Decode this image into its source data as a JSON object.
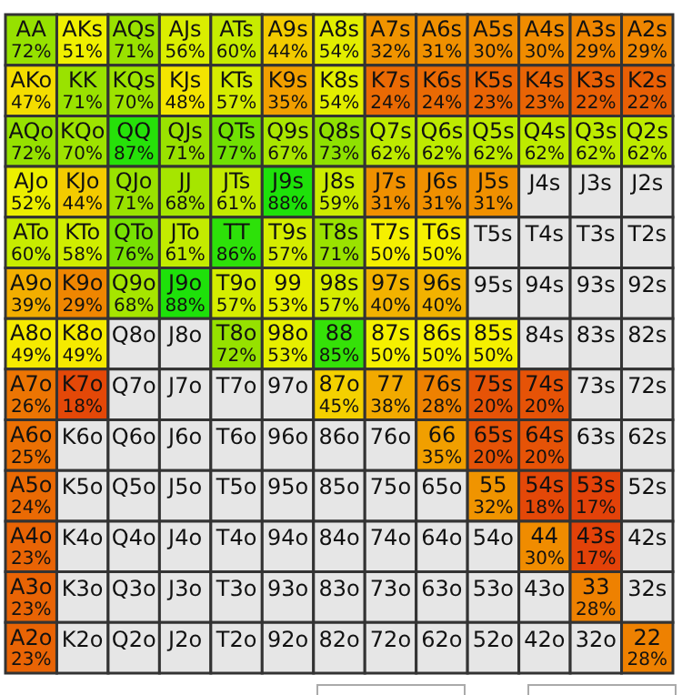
{
  "chart_data": {
    "type": "heatmap",
    "categories": [
      null,
      null,
      null,
      null,
      null,
      null,
      null,
      null,
      null,
      null,
      null,
      null,
      null
    ],
    "y_categories": [
      null,
      null,
      null,
      null,
      null,
      null,
      null,
      null,
      null,
      null,
      null,
      null,
      null
    ],
    "cells": [
      [
        72,
        51,
        71,
        56,
        60,
        44,
        54,
        32,
        31,
        30,
        30,
        29,
        29
      ],
      [
        47,
        71,
        70,
        48,
        57,
        35,
        54,
        24,
        24,
        23,
        23,
        22,
        22
      ],
      [
        72,
        70,
        87,
        71,
        77,
        67,
        73,
        62,
        62,
        62,
        62,
        62,
        62
      ],
      [
        52,
        44,
        71,
        68,
        61,
        88,
        59,
        31,
        31,
        31,
        null,
        null,
        null
      ],
      [
        60,
        58,
        76,
        61,
        86,
        57,
        71,
        50,
        50,
        null,
        null,
        null,
        null
      ],
      [
        39,
        29,
        68,
        88,
        57,
        53,
        57,
        40,
        40,
        null,
        null,
        null,
        null
      ],
      [
        49,
        49,
        null,
        null,
        72,
        53,
        85,
        50,
        50,
        50,
        null,
        null,
        null
      ],
      [
        26,
        18,
        null,
        null,
        null,
        null,
        45,
        38,
        28,
        20,
        20,
        null,
        null
      ],
      [
        25,
        null,
        null,
        null,
        null,
        null,
        null,
        null,
        35,
        20,
        20,
        null,
        null
      ],
      [
        24,
        null,
        null,
        null,
        null,
        null,
        null,
        null,
        null,
        32,
        18,
        17,
        null
      ],
      [
        23,
        null,
        null,
        null,
        null,
        null,
        null,
        null,
        null,
        null,
        30,
        17,
        null
      ],
      [
        23,
        null,
        null,
        null,
        null,
        null,
        null,
        null,
        null,
        null,
        null,
        28,
        null
      ],
      [
        23,
        null,
        null,
        null,
        null,
        null,
        null,
        null,
        null,
        null,
        null,
        null,
        28
      ]
    ],
    "cell_labels": [
      [
        "72%",
        "51%",
        "71%",
        "56%",
        "60%",
        "44%",
        "54%",
        "32%",
        "31%",
        "30%",
        "30%",
        "29%",
        "29%"
      ],
      [
        "47%",
        "71%",
        "70%",
        "48%",
        "57%",
        "35%",
        "54%",
        "24%",
        "24%",
        "23%",
        "23%",
        "22%",
        "22%"
      ],
      [
        "72%",
        "70%",
        "87%",
        "71%",
        "77%",
        "67%",
        "73%",
        "62%",
        "62%",
        "62%",
        "62%",
        "62%",
        "62%"
      ],
      [
        "52%",
        "44%",
        "71%",
        "68%",
        "61%",
        "88%",
        "59%",
        "31%",
        "31%",
        "31%",
        null,
        null,
        null
      ],
      [
        "60%",
        "58%",
        "76%",
        "61%",
        "86%",
        "57%",
        "71%",
        "50%",
        "50%",
        null,
        null,
        null,
        null
      ],
      [
        "39%",
        "29%",
        "68%",
        "88%",
        "57%",
        "53%",
        "57%",
        "40%",
        "40%",
        null,
        null,
        null,
        null
      ],
      [
        "49%",
        "49%",
        null,
        null,
        "72%",
        "53%",
        "85%",
        "50%",
        "50%",
        "50%",
        null,
        null,
        null
      ],
      [
        "26%",
        "18%",
        null,
        null,
        null,
        null,
        "45%",
        "38%",
        "28%",
        "20%",
        "20%",
        null,
        null
      ],
      [
        "25%",
        null,
        null,
        null,
        null,
        null,
        null,
        null,
        "35%",
        "20%",
        "20%",
        null,
        null
      ],
      [
        "24%",
        null,
        null,
        null,
        null,
        null,
        null,
        null,
        null,
        "32%",
        "18%",
        "17%",
        null
      ],
      [
        "23%",
        null,
        null,
        null,
        null,
        null,
        null,
        null,
        null,
        null,
        "30%",
        "17%",
        null
      ],
      [
        "23%",
        null,
        null,
        null,
        null,
        null,
        null,
        null,
        null,
        null,
        null,
        "28%",
        null
      ],
      [
        "23%",
        null,
        null,
        null,
        null,
        null,
        null,
        null,
        null,
        null,
        null,
        null,
        "28%"
      ]
    ],
    "annotations": [
      "AA",
      "AKs",
      "AQs",
      "AJs",
      "ATs",
      "A9s",
      "A8s",
      "A7s",
      "A6s",
      "A5s",
      "A4s",
      "A3s",
      "A2s",
      "AKo",
      "KK",
      "KQs",
      "KJs",
      "KTs",
      "K9s",
      "K8s",
      "K7s",
      "K6s",
      "K5s",
      "K4s",
      "K3s",
      "K2s",
      "AQo",
      "KQo",
      "QQ",
      "QJs",
      "QTs",
      "Q9s",
      "Q8s",
      "Q7s",
      "Q6s",
      "Q5s",
      "Q4s",
      "Q3s",
      "Q2s",
      "AJo",
      "KJo",
      "QJo",
      "JJ",
      "JTs",
      "J9s",
      "J8s",
      "J7s",
      "J6s",
      "J5s",
      "J4s",
      "J3s",
      "J2s",
      "ATo",
      "KTo",
      "QTo",
      "JTo",
      "TT",
      "T9s",
      "T8s",
      "T7s",
      "T6s",
      "T5s",
      "T4s",
      "T3s",
      "T2s",
      "A9o",
      "K9o",
      "Q9o",
      "J9o",
      "T9o",
      "99",
      "98s",
      "97s",
      "96s",
      "95s",
      "94s",
      "93s",
      "92s",
      "A8o",
      "K8o",
      "Q8o",
      "J8o",
      "T8o",
      "98o",
      "88",
      "87s",
      "86s",
      "85s",
      "84s",
      "83s",
      "82s",
      "A7o",
      "K7o",
      "Q7o",
      "J7o",
      "T7o",
      "97o",
      "87o",
      "77",
      "76s",
      "75s",
      "74s",
      "73s",
      "72s",
      "A6o",
      "K6o",
      "Q6o",
      "J6o",
      "T6o",
      "96o",
      "86o",
      "76o",
      "66",
      "65s",
      "64s",
      "63s",
      "62s",
      "A5o",
      "K5o",
      "Q5o",
      "J5o",
      "T5o",
      "95o",
      "85o",
      "75o",
      "65o",
      "55",
      "54s",
      "53s",
      "52s",
      "A4o",
      "K4o",
      "Q4o",
      "J4o",
      "T4o",
      "94o",
      "84o",
      "74o",
      "64o",
      "54o",
      "44",
      "43s",
      "42s",
      "A3o",
      "K3o",
      "Q3o",
      "J3o",
      "T3o",
      "93o",
      "83o",
      "73o",
      "63o",
      "53o",
      "43o",
      "33",
      "32s",
      "A2o",
      "K2o",
      "Q2o",
      "J2o",
      "T2o",
      "92o",
      "82o",
      "72o",
      "62o",
      "52o",
      "42o",
      "32o",
      "22"
    ]
  }
}
